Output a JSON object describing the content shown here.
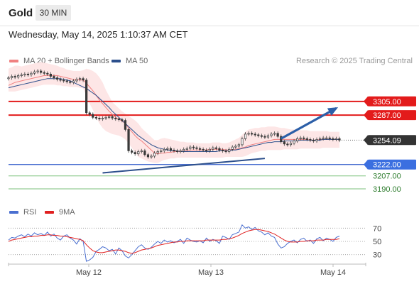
{
  "header": {
    "symbol": "Gold",
    "timeframe": "30 MIN",
    "datetime": "Wednesday, May 14, 2025 1:10:37 AM CET"
  },
  "legend": {
    "items": [
      {
        "label": "MA 20 + Bollinger Bands",
        "color": "#f08080"
      },
      {
        "label": "MA 50",
        "color": "#2c4f8c"
      }
    ],
    "credit": "Research © 2025 Trading Central"
  },
  "rsi_legend": {
    "items": [
      {
        "label": "RSI",
        "color": "#4a6fd0"
      },
      {
        "label": "9MA",
        "color": "#e02020"
      }
    ]
  },
  "chart_data": [
    {
      "type": "candlestick",
      "x_ticks": [
        "May 12",
        "May 13",
        "May 14"
      ],
      "ylim": [
        3175,
        3345
      ],
      "close_series": [
        3336,
        3338,
        3337,
        3339,
        3340,
        3341,
        3340,
        3342,
        3344,
        3345,
        3343,
        3342,
        3341,
        3338,
        3336,
        3334,
        3333,
        3332,
        3331,
        3330,
        3332,
        3334,
        3335,
        3333,
        3290,
        3288,
        3284,
        3283,
        3282,
        3283,
        3284,
        3285,
        3283,
        3282,
        3281,
        3280,
        3268,
        3240,
        3238,
        3236,
        3239,
        3240,
        3235,
        3232,
        3233,
        3237,
        3239,
        3240,
        3242,
        3243,
        3241,
        3240,
        3239,
        3240,
        3242,
        3243,
        3245,
        3244,
        3243,
        3242,
        3241,
        3240,
        3242,
        3244,
        3243,
        3241,
        3240,
        3239,
        3242,
        3245,
        3246,
        3248,
        3256,
        3262,
        3263,
        3262,
        3261,
        3260,
        3259,
        3258,
        3260,
        3262,
        3263,
        3259,
        3252,
        3249,
        3248,
        3250,
        3253,
        3256,
        3257,
        3256,
        3255,
        3254,
        3253,
        3255,
        3256,
        3257,
        3257,
        3256,
        3255,
        3256,
        3254
      ],
      "ma20_series": [
        3326,
        3328,
        3330,
        3331,
        3332,
        3333,
        3334,
        3335,
        3336,
        3337,
        3338,
        3339,
        3339,
        3339,
        3339,
        3339,
        3338,
        3337,
        3336,
        3335,
        3334,
        3334,
        3333,
        3333,
        3329,
        3324,
        3319,
        3313,
        3307,
        3302,
        3297,
        3292,
        3288,
        3284,
        3282,
        3279,
        3276,
        3270,
        3265,
        3260,
        3256,
        3253,
        3249,
        3245,
        3241,
        3237,
        3236,
        3237,
        3237,
        3238,
        3238,
        3239,
        3239,
        3239,
        3240,
        3240,
        3241,
        3241,
        3241,
        3241,
        3241,
        3241,
        3242,
        3242,
        3242,
        3242,
        3242,
        3241,
        3241,
        3242,
        3242,
        3243,
        3244,
        3245,
        3247,
        3248,
        3249,
        3250,
        3251,
        3252,
        3253,
        3254,
        3255,
        3255,
        3255,
        3255,
        3255,
        3255,
        3255,
        3255,
        3255,
        3255,
        3255,
        3254,
        3254,
        3254,
        3255,
        3255,
        3255,
        3255,
        3255,
        3255,
        3255
      ],
      "ma50_series": [
        3323,
        3324,
        3325,
        3326,
        3327,
        3328,
        3329,
        3330,
        3331,
        3332,
        3333,
        3334,
        3335,
        3335,
        3335,
        3335,
        3335,
        3334,
        3333,
        3332,
        3330,
        3328,
        3326,
        3324,
        3322,
        3319,
        3316,
        3313,
        3309,
        3305,
        3301,
        3297,
        3292,
        3288,
        3284,
        3280,
        3276,
        3272,
        3268,
        3264,
        3260,
        3257,
        3254,
        3251,
        3248,
        3246,
        3244,
        3243,
        3242,
        3241,
        3240,
        3240,
        3240,
        3239,
        3239,
        3239,
        3239,
        3239,
        3239,
        3239,
        3239,
        3239,
        3239,
        3239,
        3239,
        3240,
        3240,
        3240,
        3240,
        3241,
        3241,
        3242,
        3243,
        3244,
        3245,
        3246,
        3247,
        3248,
        3249,
        3250,
        3251,
        3251,
        3252,
        3252,
        3252,
        3253,
        3253,
        3253,
        3253,
        3253,
        3254,
        3254,
        3254,
        3254,
        3254,
        3254,
        3254,
        3255,
        3255,
        3255,
        3255,
        3255,
        3255
      ],
      "bollinger_upper": [
        3348,
        3350,
        3352,
        3352,
        3351,
        3352,
        3353,
        3354,
        3355,
        3356,
        3357,
        3356,
        3355,
        3354,
        3353,
        3352,
        3350,
        3349,
        3347,
        3346,
        3345,
        3345,
        3345,
        3346,
        3348,
        3347,
        3345,
        3342,
        3337,
        3330,
        3320,
        3312,
        3304,
        3300,
        3296,
        3292,
        3289,
        3286,
        3283,
        3280,
        3276,
        3270,
        3266,
        3262,
        3258,
        3254,
        3254,
        3256,
        3257,
        3256,
        3255,
        3254,
        3253,
        3252,
        3252,
        3251,
        3251,
        3251,
        3250,
        3250,
        3250,
        3250,
        3250,
        3251,
        3251,
        3251,
        3250,
        3250,
        3251,
        3253,
        3255,
        3257,
        3261,
        3265,
        3268,
        3269,
        3270,
        3270,
        3271,
        3271,
        3272,
        3272,
        3272,
        3271,
        3270,
        3270,
        3269,
        3268,
        3268,
        3268,
        3267,
        3267,
        3267,
        3266,
        3266,
        3266,
        3266,
        3266,
        3266,
        3265,
        3265,
        3265,
        3265
      ],
      "bollinger_lower": [
        3318,
        3318,
        3318,
        3319,
        3320,
        3321,
        3322,
        3323,
        3324,
        3325,
        3326,
        3327,
        3327,
        3327,
        3327,
        3326,
        3326,
        3325,
        3325,
        3324,
        3324,
        3324,
        3323,
        3322,
        3312,
        3302,
        3294,
        3284,
        3276,
        3270,
        3266,
        3264,
        3262,
        3261,
        3260,
        3258,
        3255,
        3250,
        3244,
        3238,
        3232,
        3230,
        3228,
        3226,
        3225,
        3224,
        3224,
        3226,
        3228,
        3229,
        3230,
        3230,
        3231,
        3231,
        3231,
        3231,
        3231,
        3231,
        3231,
        3231,
        3231,
        3231,
        3231,
        3231,
        3231,
        3231,
        3231,
        3232,
        3232,
        3232,
        3232,
        3232,
        3232,
        3233,
        3235,
        3237,
        3238,
        3239,
        3240,
        3240,
        3241,
        3241,
        3241,
        3241,
        3241,
        3242,
        3242,
        3242,
        3242,
        3242,
        3243,
        3243,
        3243,
        3243,
        3243,
        3243,
        3243,
        3244,
        3244,
        3244,
        3244,
        3244,
        3244
      ],
      "levels": [
        {
          "value": 3305.0,
          "label": "3305.00",
          "kind": "resistance"
        },
        {
          "value": 3287.0,
          "label": "3287.00",
          "kind": "resistance"
        },
        {
          "value": 3254.09,
          "label": "3254.09",
          "kind": "last"
        },
        {
          "value": 3222.0,
          "label": "3222.00",
          "kind": "pivot"
        },
        {
          "value": 3207.0,
          "label": "3207.00",
          "kind": "support"
        },
        {
          "value": 3190.0,
          "label": "3190.00",
          "kind": "support"
        }
      ],
      "trendline": {
        "x": [
          29,
          79
        ],
        "y": [
          3211,
          3230
        ]
      },
      "projection": {
        "x": [
          84,
          101
        ],
        "y": [
          3256,
          3296
        ]
      }
    },
    {
      "type": "line",
      "indicator": "RSI",
      "ylim": [
        20,
        80
      ],
      "ticks": [
        70,
        50,
        30
      ],
      "series": [
        {
          "name": "RSI",
          "values": [
            52,
            56,
            55,
            58,
            60,
            57,
            61,
            58,
            63,
            60,
            62,
            59,
            64,
            58,
            61,
            55,
            52,
            58,
            60,
            55,
            52,
            46,
            54,
            50,
            20,
            22,
            26,
            35,
            38,
            42,
            40,
            36,
            38,
            31,
            40,
            36,
            28,
            25,
            30,
            36,
            42,
            45,
            40,
            38,
            41,
            46,
            50,
            47,
            52,
            49,
            51,
            48,
            50,
            53,
            47,
            55,
            52,
            50,
            49,
            51,
            48,
            55,
            50,
            53,
            51,
            47,
            58,
            56,
            53,
            60,
            62,
            64,
            75,
            70,
            72,
            68,
            71,
            66,
            64,
            60,
            63,
            58,
            56,
            46,
            40,
            42,
            47,
            50,
            52,
            48,
            53,
            55,
            50,
            52,
            47,
            54,
            56,
            51,
            55,
            53,
            50,
            56,
            58
          ]
        },
        {
          "name": "9MA",
          "values": [
            50,
            52,
            53,
            54,
            55,
            56,
            57,
            57,
            58,
            58,
            59,
            59,
            60,
            60,
            59,
            59,
            58,
            58,
            57,
            56,
            55,
            54,
            53,
            51,
            45,
            40,
            36,
            34,
            33,
            33,
            34,
            35,
            36,
            37,
            37,
            36,
            35,
            33,
            32,
            33,
            35,
            37,
            38,
            39,
            40,
            42,
            44,
            45,
            46,
            47,
            48,
            49,
            49,
            50,
            50,
            51,
            51,
            51,
            51,
            51,
            51,
            52,
            52,
            52,
            52,
            52,
            53,
            53,
            54,
            55,
            57,
            59,
            62,
            64,
            66,
            67,
            68,
            68,
            67,
            66,
            65,
            63,
            61,
            58,
            55,
            52,
            50,
            49,
            49,
            49,
            50,
            50,
            51,
            51,
            51,
            52,
            52,
            52,
            53,
            53,
            53,
            53,
            54
          ]
        }
      ]
    }
  ]
}
